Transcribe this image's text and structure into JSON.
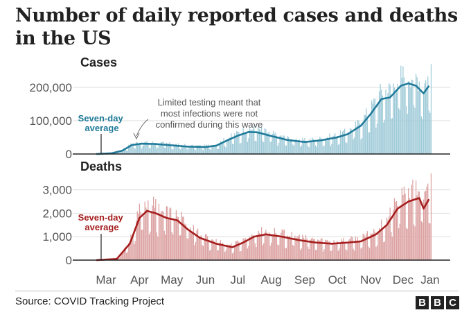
{
  "title": "Number of daily reported cases and deaths in the US",
  "source": "Source: COVID Tracking Project",
  "logo_letters": [
    "B",
    "B",
    "C"
  ],
  "colors": {
    "cases_bar": "#9ecad8",
    "cases_line": "#1f7a99",
    "deaths_bar": "#dca0a0",
    "deaths_line": "#a51d1d",
    "axis": "#222222",
    "grid": "#dddddd"
  },
  "chart_data": [
    {
      "type": "bar",
      "title": "Cases",
      "x_axis_months": [
        "Mar",
        "Apr",
        "May",
        "Jun",
        "Jul",
        "Aug",
        "Sep",
        "Oct",
        "Nov",
        "Dec",
        "Jan"
      ],
      "yticks": [
        0,
        100000,
        200000
      ],
      "ytick_labels": [
        "0",
        "100,000",
        "200,000"
      ],
      "ylim": [
        0,
        250000
      ],
      "grid": true,
      "series": [
        {
          "name": "Seven-day average",
          "kind": "line",
          "points": [
            [
              "2020-03-01",
              0
            ],
            [
              "2020-03-15",
              2000
            ],
            [
              "2020-03-25",
              10000
            ],
            [
              "2020-04-03",
              27000
            ],
            [
              "2020-04-12",
              31000
            ],
            [
              "2020-04-25",
              30000
            ],
            [
              "2020-05-10",
              26000
            ],
            [
              "2020-05-25",
              22000
            ],
            [
              "2020-06-10",
              21000
            ],
            [
              "2020-06-20",
              25000
            ],
            [
              "2020-07-01",
              42000
            ],
            [
              "2020-07-10",
              55000
            ],
            [
              "2020-07-20",
              66000
            ],
            [
              "2020-07-28",
              65000
            ],
            [
              "2020-08-10",
              54000
            ],
            [
              "2020-08-25",
              42000
            ],
            [
              "2020-09-10",
              36000
            ],
            [
              "2020-09-25",
              41000
            ],
            [
              "2020-10-10",
              50000
            ],
            [
              "2020-10-20",
              60000
            ],
            [
              "2020-11-01",
              85000
            ],
            [
              "2020-11-10",
              120000
            ],
            [
              "2020-11-20",
              165000
            ],
            [
              "2020-11-28",
              170000
            ],
            [
              "2020-12-08",
              205000
            ],
            [
              "2020-12-15",
              212000
            ],
            [
              "2020-12-22",
              205000
            ],
            [
              "2020-12-29",
              182000
            ],
            [
              "2021-01-03",
              205000
            ]
          ]
        },
        {
          "name": "Daily reported cases",
          "kind": "bars",
          "peak_day_value": 270000
        }
      ],
      "annotation": "Limited testing meant that most infections were not confirmed during this wave"
    },
    {
      "type": "bar",
      "title": "Deaths",
      "x_axis_months": [
        "Mar",
        "Apr",
        "May",
        "Jun",
        "Jul",
        "Aug",
        "Sep",
        "Oct",
        "Nov",
        "Dec",
        "Jan"
      ],
      "yticks": [
        0,
        1000,
        2000,
        3000
      ],
      "ytick_labels": [
        "0",
        "1,000",
        "2,000",
        "3,000"
      ],
      "ylim": [
        0,
        3700
      ],
      "grid": true,
      "series": [
        {
          "name": "Seven-day average",
          "kind": "line",
          "points": [
            [
              "2020-03-01",
              0
            ],
            [
              "2020-03-20",
              50
            ],
            [
              "2020-04-01",
              700
            ],
            [
              "2020-04-10",
              1800
            ],
            [
              "2020-04-17",
              2100
            ],
            [
              "2020-04-25",
              2000
            ],
            [
              "2020-05-05",
              1800
            ],
            [
              "2020-05-15",
              1700
            ],
            [
              "2020-05-25",
              1300
            ],
            [
              "2020-06-05",
              950
            ],
            [
              "2020-06-20",
              700
            ],
            [
              "2020-07-05",
              550
            ],
            [
              "2020-07-15",
              750
            ],
            [
              "2020-07-25",
              1000
            ],
            [
              "2020-08-05",
              1100
            ],
            [
              "2020-08-20",
              1000
            ],
            [
              "2020-09-05",
              850
            ],
            [
              "2020-09-20",
              750
            ],
            [
              "2020-10-05",
              700
            ],
            [
              "2020-10-20",
              750
            ],
            [
              "2020-11-01",
              800
            ],
            [
              "2020-11-15",
              1100
            ],
            [
              "2020-11-25",
              1500
            ],
            [
              "2020-12-05",
              2200
            ],
            [
              "2020-12-15",
              2500
            ],
            [
              "2020-12-25",
              2650
            ],
            [
              "2020-12-29",
              2200
            ],
            [
              "2021-01-03",
              2600
            ]
          ]
        },
        {
          "name": "Daily reported deaths",
          "kind": "bars",
          "peak_day_value": 3700
        }
      ]
    }
  ]
}
